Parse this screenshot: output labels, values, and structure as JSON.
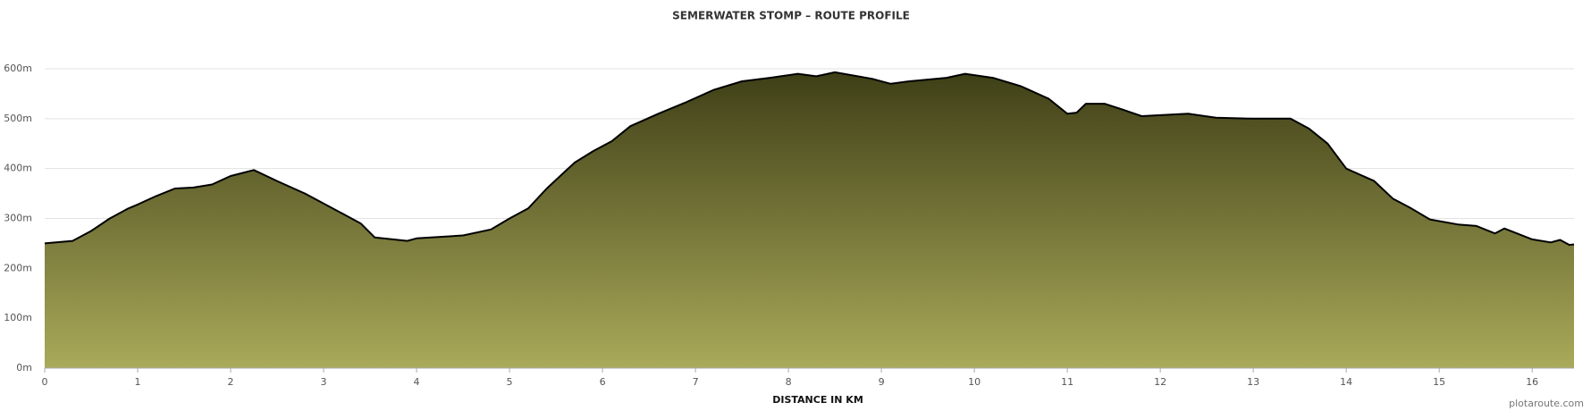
{
  "chart_data": {
    "type": "area",
    "title": "SEMERWATER STOMP – ROUTE PROFILE",
    "xlabel": "DISTANCE IN KM",
    "credit": "plotaroute.com",
    "x": [
      0,
      0.3,
      0.5,
      0.7,
      0.9,
      1.0,
      1.2,
      1.4,
      1.6,
      1.8,
      2.0,
      2.25,
      2.5,
      2.8,
      3.0,
      3.2,
      3.4,
      3.55,
      3.8,
      3.9,
      4.0,
      4.5,
      4.8,
      5.0,
      5.2,
      5.4,
      5.7,
      5.9,
      6.1,
      6.3,
      6.6,
      6.9,
      7.2,
      7.5,
      7.8,
      8.1,
      8.3,
      8.5,
      8.9,
      9.1,
      9.3,
      9.7,
      9.9,
      10.2,
      10.5,
      10.8,
      11.0,
      11.1,
      11.2,
      11.4,
      11.6,
      11.8,
      12.0,
      12.3,
      12.6,
      13.0,
      13.4,
      13.6,
      13.8,
      14.0,
      14.3,
      14.5,
      14.7,
      14.9,
      15.2,
      15.4,
      15.6,
      15.7,
      16.0,
      16.2,
      16.3,
      16.4,
      16.45
    ],
    "values": [
      250,
      255,
      275,
      300,
      320,
      328,
      345,
      360,
      362,
      368,
      385,
      397,
      375,
      350,
      330,
      310,
      290,
      262,
      257,
      255,
      260,
      266,
      278,
      300,
      320,
      360,
      412,
      435,
      455,
      485,
      510,
      533,
      558,
      575,
      582,
      590,
      585,
      593,
      580,
      570,
      575,
      582,
      590,
      582,
      565,
      540,
      510,
      512,
      530,
      530,
      518,
      505,
      507,
      510,
      502,
      500,
      500,
      480,
      450,
      400,
      375,
      340,
      320,
      298,
      288,
      285,
      270,
      280,
      258,
      252,
      257,
      247,
      248
    ],
    "color": "#000000",
    "gradient": [
      "#3f3f17",
      "#aaaa5a"
    ],
    "xlim": [
      0,
      16.45
    ],
    "ylim": [
      0,
      600
    ],
    "xticks": [
      0,
      1,
      2,
      3,
      4,
      5,
      6,
      7,
      8,
      9,
      10,
      11,
      12,
      13,
      14,
      15,
      16
    ],
    "yticks": [
      {
        "value": 0,
        "label": "0m"
      },
      {
        "value": 100,
        "label": "100m"
      },
      {
        "value": 200,
        "label": "200m"
      },
      {
        "value": 300,
        "label": "300m"
      },
      {
        "value": 400,
        "label": "400m"
      },
      {
        "value": 500,
        "label": "500m"
      },
      {
        "value": 600,
        "label": "600m"
      }
    ],
    "grid": true
  }
}
